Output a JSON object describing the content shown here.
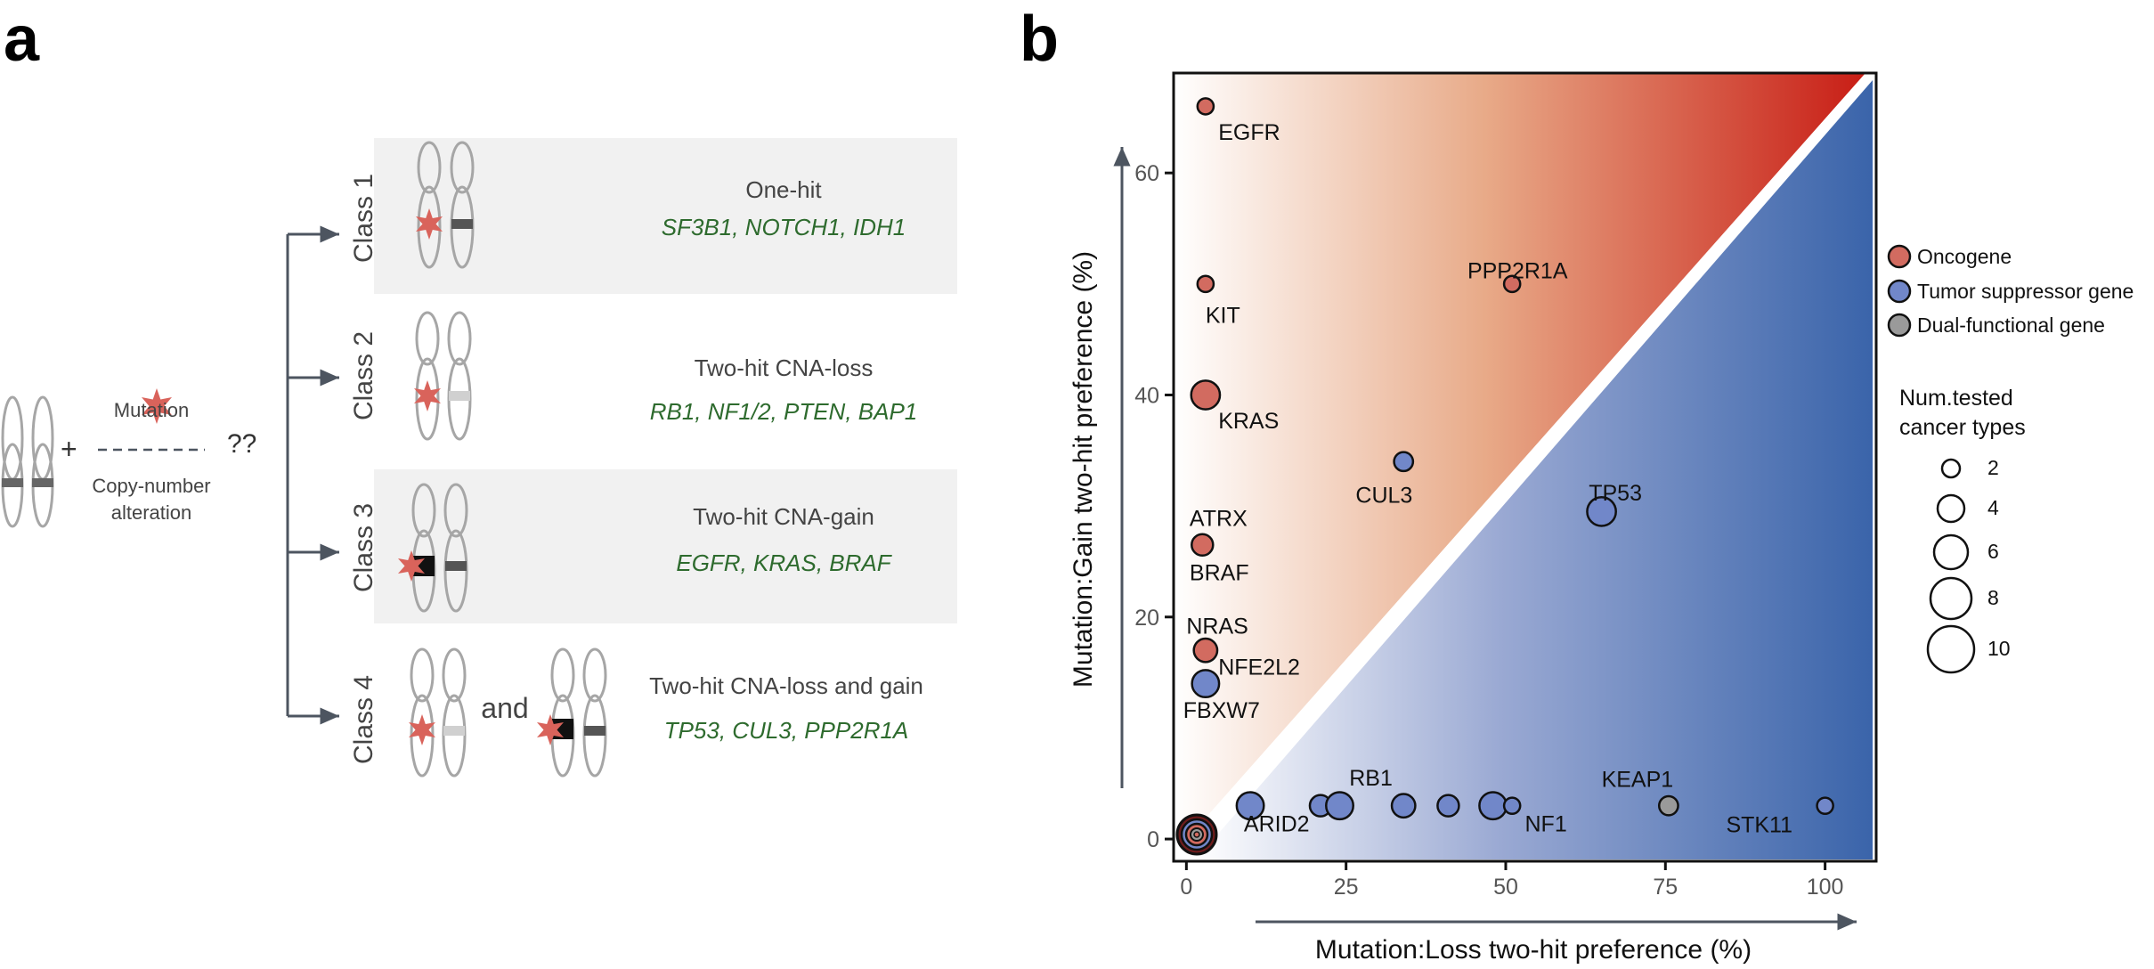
{
  "panel_a": {
    "letter": "a",
    "mutation_label": "Mutation",
    "cna_label_line1": "Copy-number",
    "cna_label_line2": "alteration",
    "question": "??",
    "plus": "+",
    "and_label": "and",
    "classes": [
      {
        "label": "Class 1",
        "title": "One-hit",
        "genes": "SF3B1, NOTCH1, IDH1"
      },
      {
        "label": "Class 2",
        "title": "Two-hit CNA-loss",
        "genes": "RB1, NF1/2, PTEN, BAP1"
      },
      {
        "label": "Class 3",
        "title": "Two-hit CNA-gain",
        "genes": "EGFR, KRAS, BRAF"
      },
      {
        "label": "Class 4",
        "title": "Two-hit CNA-loss and gain",
        "genes": "TP53, CUL3, PPP2R1A"
      }
    ],
    "colors": {
      "box": "#f1f1f1",
      "genes": "#2e6b2e",
      "arrow": "#4d5560",
      "mutation": "#d9635b"
    }
  },
  "panel_b": {
    "letter": "b",
    "legend": {
      "types": [
        "Oncogene",
        "Tumor suppressor gene",
        "Dual-functional gene"
      ],
      "size_title_line1": "Num.tested",
      "size_title_line2": "cancer types",
      "sizes": [
        "2",
        "4",
        "6",
        "8",
        "10"
      ]
    }
  },
  "chart_data": {
    "type": "scatter",
    "xlabel": "Mutation:Loss two-hit preference (%)",
    "ylabel": "Mutation:Gain two-hit preference (%)",
    "xlim": [
      -2,
      108
    ],
    "ylim": [
      -2,
      69
    ],
    "xticks": [
      "0",
      "25",
      "50",
      "75",
      "100"
    ],
    "yticks": [
      "0",
      "20",
      "40",
      "60"
    ],
    "colors": {
      "Oncogene": "#d26b60",
      "Tumor suppressor gene": "#7187c9",
      "Dual-functional gene": "#9a9a9a",
      "gain_region": "#c81d15",
      "loss_region": "#3a64aa"
    },
    "points": [
      {
        "gene": "EGFR",
        "x": 3,
        "y": 66,
        "type": "Oncogene",
        "n": 2
      },
      {
        "gene": "KIT",
        "x": 3,
        "y": 50,
        "type": "Oncogene",
        "n": 2
      },
      {
        "gene": "PPP2R1A",
        "x": 51,
        "y": 50,
        "type": "Oncogene",
        "n": 2
      },
      {
        "gene": "KRAS",
        "x": 3,
        "y": 40,
        "type": "Oncogene",
        "n": 8
      },
      {
        "gene": "CUL3",
        "x": 34,
        "y": 34,
        "type": "Tumor suppressor gene",
        "n": 3
      },
      {
        "gene": "TP53",
        "x": 65,
        "y": 29.5,
        "type": "Tumor suppressor gene",
        "n": 8
      },
      {
        "gene": "BRAF",
        "x": 2.5,
        "y": 26.5,
        "type": "Oncogene",
        "n": 4
      },
      {
        "gene": "NRAS",
        "x": 3,
        "y": 17,
        "type": "Oncogene",
        "n": 5
      },
      {
        "gene": "FBXW7",
        "x": 3,
        "y": 14,
        "type": "Tumor suppressor gene",
        "n": 7
      },
      {
        "gene": "ARID2",
        "x": 10,
        "y": 3,
        "type": "Tumor suppressor gene",
        "n": 7
      },
      {
        "gene": "",
        "x": 21,
        "y": 3,
        "type": "Tumor suppressor gene",
        "n": 4
      },
      {
        "gene": "RB1",
        "x": 24,
        "y": 3,
        "type": "Tumor suppressor gene",
        "n": 7
      },
      {
        "gene": "",
        "x": 34,
        "y": 3,
        "type": "Tumor suppressor gene",
        "n": 5
      },
      {
        "gene": "",
        "x": 41,
        "y": 3,
        "type": "Tumor suppressor gene",
        "n": 4
      },
      {
        "gene": "",
        "x": 48,
        "y": 3,
        "type": "Tumor suppressor gene",
        "n": 7
      },
      {
        "gene": "NF1",
        "x": 51,
        "y": 3,
        "type": "Tumor suppressor gene",
        "n": 2
      },
      {
        "gene": "KEAP1",
        "x": 75.5,
        "y": 3,
        "type": "Dual-functional gene",
        "n": 3
      },
      {
        "gene": "STK11",
        "x": 100,
        "y": 3,
        "type": "Tumor suppressor gene",
        "n": 2
      }
    ],
    "point_labels": [
      {
        "text": "EGFR",
        "x": 5,
        "y": 63
      },
      {
        "text": "KIT",
        "x": 3,
        "y": 46.5
      },
      {
        "text": "PPP2R1A",
        "x": 44,
        "y": 50.5
      },
      {
        "text": "KRAS",
        "x": 5,
        "y": 37
      },
      {
        "text": "CUL3",
        "x": 26.5,
        "y": 30.3
      },
      {
        "text": "TP53",
        "x": 63,
        "y": 30.5
      },
      {
        "text": "ATRX",
        "x": 0.5,
        "y": 28.2
      },
      {
        "text": "BRAF",
        "x": 0.5,
        "y": 23.3
      },
      {
        "text": "NRAS",
        "x": 0,
        "y": 18.5
      },
      {
        "text": "NFE2L2",
        "x": 5,
        "y": 14.8
      },
      {
        "text": "FBXW7",
        "x": -0.5,
        "y": 10.9
      },
      {
        "text": "RB1",
        "x": 25.5,
        "y": 4.8
      },
      {
        "text": "ARID2",
        "x": 9,
        "y": 0.7
      },
      {
        "text": "NF1",
        "x": 53,
        "y": 0.7
      },
      {
        "text": "KEAP1",
        "x": 65,
        "y": 4.7
      },
      {
        "text": "STK11",
        "x": 84.5,
        "y": 0.6
      }
    ]
  }
}
